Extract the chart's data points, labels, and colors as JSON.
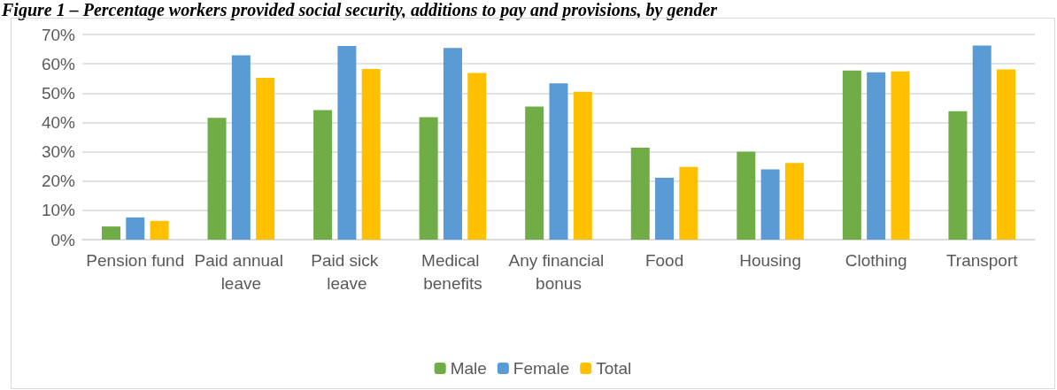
{
  "chart_data": {
    "type": "bar",
    "title": "Figure 1 – Percentage workers provided social security, additions to pay and provisions, by gender",
    "categories": [
      "Pension fund",
      "Paid annual leave",
      "Paid sick leave",
      "Medical benefits",
      "Any financial bonus",
      "Food",
      "Housing",
      "Clothing",
      "Transport"
    ],
    "series": [
      {
        "name": "Male",
        "color": "#70ad47",
        "values": [
          4.5,
          41.6,
          44.2,
          41.8,
          45.4,
          31.4,
          30.0,
          57.7,
          43.8
        ]
      },
      {
        "name": "Female",
        "color": "#5b9bd5",
        "values": [
          7.6,
          62.9,
          66.1,
          65.4,
          53.3,
          21.1,
          24.0,
          57.1,
          66.2
        ]
      },
      {
        "name": "Total",
        "color": "#ffc000",
        "values": [
          6.4,
          55.2,
          58.2,
          56.9,
          50.5,
          24.8,
          26.2,
          57.4,
          58.1
        ]
      }
    ],
    "ylim": [
      0,
      70
    ],
    "yticks": [
      {
        "value": 0,
        "label": "0%"
      },
      {
        "value": 10,
        "label": "10%"
      },
      {
        "value": 20,
        "label": "20%"
      },
      {
        "value": 30,
        "label": "30%"
      },
      {
        "value": 40,
        "label": "40%"
      },
      {
        "value": 50,
        "label": "50%"
      },
      {
        "value": 60,
        "label": "60%"
      },
      {
        "value": 70,
        "label": "70%"
      }
    ],
    "grid": "y",
    "legend": "bottom"
  }
}
